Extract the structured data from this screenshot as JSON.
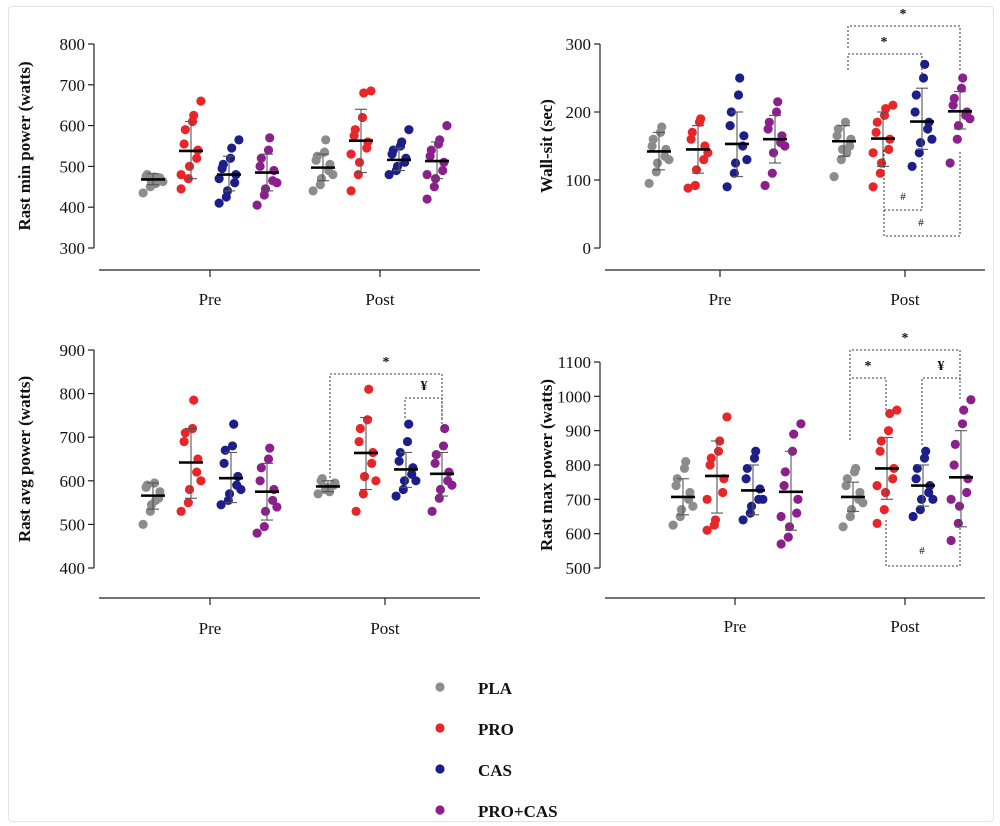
{
  "colors": {
    "PLA": "#8c8c8c",
    "PRO": "#e8262a",
    "CAS": "#1c1f8a",
    "PRO+CAS": "#8b1f8b"
  },
  "legend": [
    "PLA",
    "PRO",
    "CAS",
    "PRO+CAS"
  ],
  "chart_data": [
    {
      "type": "scatter",
      "ylabel": "Rast min power (watts)",
      "ylim": [
        300,
        800
      ],
      "yticks": [
        300,
        400,
        500,
        600,
        700,
        800
      ],
      "groups": [
        "Pre",
        "Post"
      ],
      "series_order": [
        "PLA",
        "PRO",
        "CAS",
        "PRO+CAS"
      ],
      "data": {
        "Pre": {
          "PLA": {
            "mean": 468,
            "sd": [
              455,
              482
            ],
            "points": [
              435,
              450,
              462,
              468,
              472,
              476,
              480,
              474,
              458,
              463
            ]
          },
          "PRO": {
            "mean": 538,
            "sd": [
              470,
              610
            ],
            "points": [
              445,
              470,
              500,
              520,
              540,
              555,
              590,
              610,
              625,
              660,
              480
            ]
          },
          "CAS": {
            "mean": 480,
            "sd": [
              440,
              525
            ],
            "points": [
              410,
              425,
              440,
              460,
              480,
              495,
              505,
              520,
              545,
              565,
              470
            ]
          },
          "PRO+CAS": {
            "mean": 485,
            "sd": [
              440,
              530
            ],
            "points": [
              405,
              430,
              445,
              465,
              490,
              500,
              520,
              540,
              570,
              460
            ]
          }
        },
        "Post": {
          "PLA": {
            "mean": 497,
            "sd": [
              465,
              530
            ],
            "points": [
              440,
              455,
              470,
              490,
              505,
              515,
              525,
              535,
              565,
              480
            ]
          },
          "PRO": {
            "mean": 563,
            "sd": [
              485,
              640
            ],
            "points": [
              440,
              480,
              510,
              545,
              560,
              575,
              590,
              620,
              680,
              685,
              530
            ]
          },
          "CAS": {
            "mean": 516,
            "sd": [
              490,
              545
            ],
            "points": [
              480,
              490,
              500,
              510,
              520,
              530,
              540,
              550,
              560,
              590
            ]
          },
          "PRO+CAS": {
            "mean": 513,
            "sd": [
              470,
              560
            ],
            "points": [
              420,
              450,
              470,
              490,
              510,
              525,
              540,
              555,
              565,
              600,
              480
            ]
          }
        }
      }
    },
    {
      "type": "scatter",
      "ylabel": "Wall-sit (sec)",
      "ylim": [
        0,
        300
      ],
      "yticks": [
        0,
        100,
        200,
        300
      ],
      "groups": [
        "Pre",
        "Post"
      ],
      "series_order": [
        "PLA",
        "PRO",
        "CAS",
        "PRO+CAS"
      ],
      "data": {
        "Pre": {
          "PLA": {
            "mean": 142,
            "sd": [
              115,
              170
            ],
            "points": [
              95,
              112,
              125,
              135,
              145,
              150,
              160,
              170,
              178,
              130
            ]
          },
          "PRO": {
            "mean": 145,
            "sd": [
              110,
              180
            ],
            "points": [
              88,
              92,
              115,
              130,
              150,
              160,
              170,
              185,
              190,
              140
            ]
          },
          "CAS": {
            "mean": 153,
            "sd": [
              105,
              200
            ],
            "points": [
              90,
              110,
              125,
              150,
              165,
              180,
              200,
              225,
              250,
              130
            ]
          },
          "PRO+CAS": {
            "mean": 160,
            "sd": [
              125,
              195
            ],
            "points": [
              92,
              110,
              140,
              155,
              165,
              175,
              185,
              200,
              215,
              150
            ]
          }
        },
        "Post": {
          "PLA": {
            "mean": 157,
            "sd": [
              135,
              180
            ],
            "points": [
              105,
              130,
              145,
              150,
              160,
              165,
              175,
              185,
              140
            ]
          },
          "PRO": {
            "mean": 161,
            "sd": [
              120,
              200
            ],
            "points": [
              90,
              110,
              125,
              145,
              160,
              170,
              185,
              195,
              205,
              210,
              140
            ]
          },
          "CAS": {
            "mean": 186,
            "sd": [
              145,
              235
            ],
            "points": [
              120,
              140,
              155,
              175,
              185,
              200,
              225,
              250,
              270,
              160
            ]
          },
          "PRO+CAS": {
            "mean": 201,
            "sd": [
              175,
              230
            ],
            "points": [
              125,
              160,
              180,
              195,
              200,
              210,
              220,
              235,
              250,
              190
            ]
          }
        }
      },
      "annotations": {
        "above": [
          "*",
          "*"
        ],
        "below": [
          "#",
          "#"
        ]
      }
    },
    {
      "type": "scatter",
      "ylabel": "Rast avg power (watts)",
      "ylim": [
        400,
        900
      ],
      "yticks": [
        400,
        500,
        600,
        700,
        800,
        900
      ],
      "groups": [
        "Pre",
        "Post"
      ],
      "series_order": [
        "PLA",
        "PRO",
        "CAS",
        "PRO+CAS"
      ],
      "data": {
        "Pre": {
          "PLA": {
            "mean": 566,
            "sd": [
              535,
              595
            ],
            "points": [
              500,
              530,
              545,
              560,
              575,
              585,
              590,
              595,
              555
            ]
          },
          "PRO": {
            "mean": 642,
            "sd": [
              560,
              720
            ],
            "points": [
              530,
              550,
              580,
              620,
              650,
              690,
              710,
              720,
              785,
              600
            ]
          },
          "CAS": {
            "mean": 606,
            "sd": [
              550,
              665
            ],
            "points": [
              545,
              555,
              570,
              590,
              610,
              640,
              670,
              680,
              730,
              580
            ]
          },
          "PRO+CAS": {
            "mean": 575,
            "sd": [
              510,
              640
            ],
            "points": [
              480,
              495,
              530,
              555,
              580,
              600,
              630,
              650,
              675,
              540
            ]
          }
        },
        "Post": {
          "PLA": {
            "mean": 587,
            "sd": [
              575,
              600
            ],
            "points": [
              570,
              580,
              585,
              590,
              595,
              600,
              605,
              575
            ]
          },
          "PRO": {
            "mean": 664,
            "sd": [
              580,
              745
            ],
            "points": [
              530,
              570,
              610,
              640,
              665,
              690,
              720,
              740,
              810,
              600
            ]
          },
          "CAS": {
            "mean": 626,
            "sd": [
              585,
              665
            ],
            "points": [
              565,
              580,
              600,
              615,
              630,
              645,
              665,
              690,
              730,
              600
            ]
          },
          "PRO+CAS": {
            "mean": 616,
            "sd": [
              565,
              665
            ],
            "points": [
              530,
              560,
              580,
              600,
              620,
              640,
              660,
              680,
              720,
              590
            ]
          }
        }
      },
      "annotations": {
        "above": [
          "*",
          "¥"
        ]
      }
    },
    {
      "type": "scatter",
      "ylabel": "Rast max power (watts)",
      "ylim": [
        500,
        1100
      ],
      "yticks": [
        500,
        600,
        700,
        800,
        900,
        1000,
        1100
      ],
      "groups": [
        "Pre",
        "Post"
      ],
      "series_order": [
        "PLA",
        "PRO",
        "CAS",
        "PRO+CAS"
      ],
      "data": {
        "Pre": {
          "PLA": {
            "mean": 707,
            "sd": [
              655,
              760
            ],
            "points": [
              625,
              650,
              670,
              700,
              720,
              740,
              760,
              790,
              810,
              680
            ]
          },
          "PRO": {
            "mean": 768,
            "sd": [
              660,
              870
            ],
            "points": [
              610,
              625,
              640,
              720,
              760,
              800,
              820,
              840,
              870,
              940,
              700
            ]
          },
          "CAS": {
            "mean": 726,
            "sd": [
              655,
              800
            ],
            "points": [
              640,
              660,
              680,
              700,
              730,
              760,
              790,
              820,
              840,
              700
            ]
          },
          "PRO+CAS": {
            "mean": 722,
            "sd": [
              610,
              840
            ],
            "points": [
              570,
              590,
              620,
              660,
              700,
              740,
              780,
              840,
              890,
              920,
              650
            ]
          }
        },
        "Post": {
          "PLA": {
            "mean": 707,
            "sd": [
              665,
              750
            ],
            "points": [
              620,
              650,
              670,
              700,
              720,
              740,
              760,
              780,
              790,
              690
            ]
          },
          "PRO": {
            "mean": 790,
            "sd": [
              700,
              880
            ],
            "points": [
              630,
              670,
              720,
              760,
              790,
              840,
              870,
              900,
              950,
              960,
              740
            ]
          },
          "CAS": {
            "mean": 740,
            "sd": [
              680,
              800
            ],
            "points": [
              650,
              670,
              700,
              720,
              740,
              760,
              790,
              820,
              840,
              700
            ]
          },
          "PRO+CAS": {
            "mean": 764,
            "sd": [
              620,
              900
            ],
            "points": [
              580,
              630,
              680,
              720,
              760,
              800,
              860,
              920,
              960,
              990,
              700
            ]
          }
        }
      },
      "annotations": {
        "above": [
          "*",
          "*",
          "¥"
        ],
        "below": [
          "#"
        ]
      }
    }
  ]
}
